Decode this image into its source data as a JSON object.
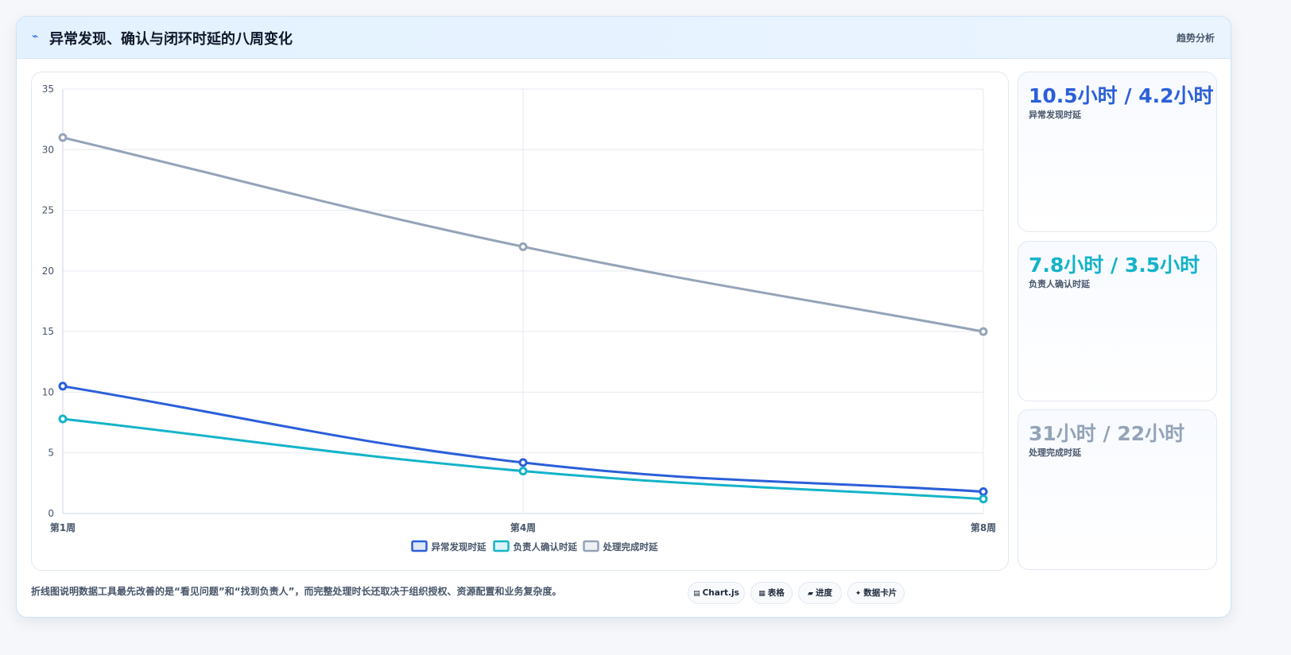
{
  "header": {
    "icon": "trend-icon",
    "title": "异常发现、确认与闭环时延的八周变化",
    "tag": "趋势分析"
  },
  "kpis": [
    {
      "value": "10.5小时 / 4.2小时",
      "label": "异常发现时延",
      "color": "#2b5fd9"
    },
    {
      "value": "7.8小时 / 3.5小时",
      "label": "负责人确认时延",
      "color": "#14b3c9"
    },
    {
      "value": "31小时 / 22小时",
      "label": "处理完成时延",
      "color": "#94a3b8"
    }
  ],
  "footnote": "折线图说明数据工具最先改善的是“看见问题”和“找到负责人”，而完整处理时长还取决于组织授权、资源配置和业务复杂度。",
  "chips": [
    {
      "icon": "chart-icon",
      "label": "Chart.js"
    },
    {
      "icon": "table-icon",
      "label": "表格"
    },
    {
      "icon": "progress-icon",
      "label": "进度"
    },
    {
      "icon": "sparkle-icon",
      "label": "数据卡片"
    }
  ],
  "chart_data": {
    "type": "line",
    "categories": [
      "第1周",
      "第4周",
      "第8周"
    ],
    "series": [
      {
        "name": "异常发现时延",
        "values": [
          10.5,
          4.2,
          1.8
        ],
        "color": "#2b5fd9"
      },
      {
        "name": "负责人确认时延",
        "values": [
          7.8,
          3.5,
          1.2
        ],
        "color": "#14b3c9"
      },
      {
        "name": "处理完成时延",
        "values": [
          31,
          22,
          15
        ],
        "color": "#94a3b8"
      }
    ],
    "title": "",
    "xlabel": "",
    "ylabel": "",
    "ylim": [
      0,
      35
    ],
    "yticks": [
      0,
      5,
      10,
      15,
      20,
      25,
      30,
      35
    ],
    "grid": true,
    "legend_position": "bottom"
  }
}
